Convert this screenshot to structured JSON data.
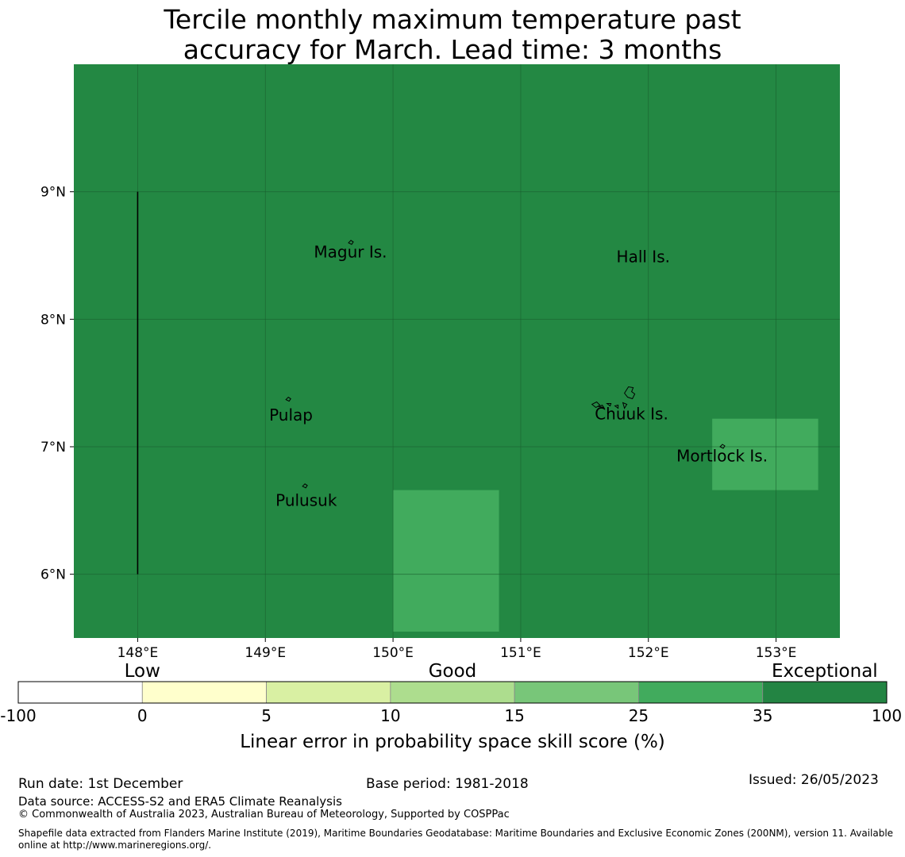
{
  "title": {
    "line1": "Tercile monthly maximum temperature past",
    "line2": "accuracy for March. Lead time: 3 months"
  },
  "map": {
    "lon_range": [
      147.5,
      153.5
    ],
    "lat_range": [
      5.5,
      10.0
    ],
    "background_color": "#238843",
    "lon_ticks": [
      {
        "value": 148,
        "label": "148°E"
      },
      {
        "value": 149,
        "label": "149°E"
      },
      {
        "value": 150,
        "label": "150°E"
      },
      {
        "value": 151,
        "label": "151°E"
      },
      {
        "value": 152,
        "label": "152°E"
      },
      {
        "value": 153,
        "label": "153°E"
      }
    ],
    "lat_ticks": [
      {
        "value": 9,
        "label": "9°N"
      },
      {
        "value": 8,
        "label": "8°N"
      },
      {
        "value": 7,
        "label": "7°N"
      },
      {
        "value": 6,
        "label": "6°N"
      }
    ],
    "grid": true,
    "boundary_line": {
      "lon": 148.0,
      "lat_from": 6.0,
      "lat_to": 9.0
    },
    "highlight_cells": [
      {
        "lon_min": 150.0,
        "lon_max": 150.83,
        "lat_min": 5.55,
        "lat_max": 6.66,
        "color": "#41ab5d"
      },
      {
        "lon_min": 152.5,
        "lon_max": 153.33,
        "lat_min": 6.66,
        "lat_max": 7.22,
        "color": "#41ab5d"
      }
    ],
    "places": [
      {
        "name": "Magur Is.",
        "lon": 149.38,
        "lat": 8.52,
        "island_lon": 149.67,
        "island_lat": 8.6
      },
      {
        "name": "Hall Is.",
        "lon": 151.75,
        "lat": 8.48,
        "island_lon": null,
        "island_lat": null
      },
      {
        "name": "Pulap",
        "lon": 149.03,
        "lat": 7.24,
        "island_lon": 149.18,
        "island_lat": 7.37
      },
      {
        "name": "Chuuk Is.",
        "lon": 151.58,
        "lat": 7.25,
        "island_lon": 151.85,
        "island_lat": 7.42
      },
      {
        "name": "Mortlock Is.",
        "lon": 152.22,
        "lat": 6.92,
        "island_lon": 152.58,
        "island_lat": 7.0
      },
      {
        "name": "Pulusuk",
        "lon": 149.08,
        "lat": 6.57,
        "island_lon": 149.31,
        "island_lat": 6.69
      }
    ]
  },
  "legend": {
    "categories": [
      {
        "label": "Low",
        "at": 1
      },
      {
        "label": "Good",
        "at": 3.5
      },
      {
        "label": "Exceptional",
        "at": 6.5
      }
    ],
    "bounds": [
      "-100",
      "0",
      "5",
      "10",
      "15",
      "25",
      "35",
      "100"
    ],
    "colors": [
      "#ffffff",
      "#ffffcc",
      "#d9f0a3",
      "#addd8e",
      "#78c679",
      "#41ab5d",
      "#238443"
    ],
    "title": "Linear error in probability space skill score (%)"
  },
  "footer": {
    "run_date": "Run date: 1st December",
    "base_period": "Base period: 1981-2018",
    "issued": "Issued: 26/05/2023",
    "data_source": "Data source: ACCESS-S2 and ERA5 Climate Reanalysis",
    "copyright": "© Commonwealth of Australia 2023, Australian Bureau of Meteorology, Supported by COSPPac",
    "shapefile": "Shapefile data extracted from Flanders Marine Institute (2019), Maritime Boundaries Geodatabase: Maritime Boundaries and Exclusive Economic Zones (200NM), version 11. Available online at http://www.marineregions.org/."
  }
}
